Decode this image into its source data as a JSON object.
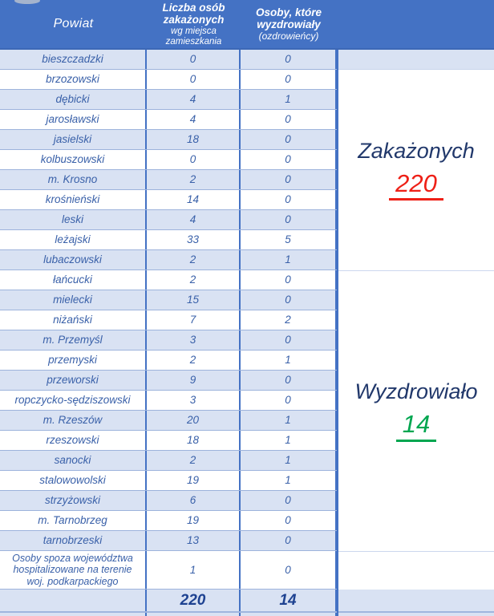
{
  "header": {
    "col_powiat": "Powiat",
    "col_infected_main": "Liczba osób zakażonych",
    "col_infected_sub": "wg miejsca zamieszkania",
    "col_recovered_main": "Osoby, które wyzdrowiały",
    "col_recovered_sub": "(ozdrowieńcy)"
  },
  "table": {
    "rows": [
      {
        "name": "bieszczadzki",
        "infected": "0",
        "recovered": "0"
      },
      {
        "name": "brzozowski",
        "infected": "0",
        "recovered": "0"
      },
      {
        "name": "dębicki",
        "infected": "4",
        "recovered": "1"
      },
      {
        "name": "jarosławski",
        "infected": "4",
        "recovered": "0"
      },
      {
        "name": "jasielski",
        "infected": "18",
        "recovered": "0"
      },
      {
        "name": "kolbuszowski",
        "infected": "0",
        "recovered": "0"
      },
      {
        "name": "m. Krosno",
        "infected": "2",
        "recovered": "0"
      },
      {
        "name": "krośnieński",
        "infected": "14",
        "recovered": "0"
      },
      {
        "name": "leski",
        "infected": "4",
        "recovered": "0"
      },
      {
        "name": "leżajski",
        "infected": "33",
        "recovered": "5"
      },
      {
        "name": "lubaczowski",
        "infected": "2",
        "recovered": "1"
      },
      {
        "name": "łańcucki",
        "infected": "2",
        "recovered": "0"
      },
      {
        "name": "mielecki",
        "infected": "15",
        "recovered": "0"
      },
      {
        "name": "niżański",
        "infected": "7",
        "recovered": "2"
      },
      {
        "name": "m. Przemyśl",
        "infected": "3",
        "recovered": "0"
      },
      {
        "name": "przemyski",
        "infected": "2",
        "recovered": "1"
      },
      {
        "name": "przeworski",
        "infected": "9",
        "recovered": "0"
      },
      {
        "name": "ropczycko-sędziszowski",
        "infected": "3",
        "recovered": "0"
      },
      {
        "name": "m. Rzeszów",
        "infected": "20",
        "recovered": "1"
      },
      {
        "name": "rzeszowski",
        "infected": "18",
        "recovered": "1"
      },
      {
        "name": "sanocki",
        "infected": "2",
        "recovered": "1"
      },
      {
        "name": "stalowowolski",
        "infected": "19",
        "recovered": "1"
      },
      {
        "name": "strzyżowski",
        "infected": "6",
        "recovered": "0"
      },
      {
        "name": "m. Tarnobrzeg",
        "infected": "19",
        "recovered": "0"
      },
      {
        "name": "tarnobrzeski",
        "infected": "13",
        "recovered": "0"
      }
    ],
    "special_row": {
      "name": "Osoby spoza województwa hospitalizowane na terenie woj. podkarpackiego",
      "infected": "1",
      "recovered": "0"
    },
    "totals": {
      "infected": "220",
      "recovered": "14"
    }
  },
  "summary": {
    "infected_label": "Zakażonych",
    "infected_value": "220",
    "recovered_label": "Wyzdrowiało",
    "recovered_value": "14"
  },
  "colors": {
    "header_blue": "#4472c4",
    "row_alt_blue": "#d9e2f3",
    "row_border": "#9db3dc",
    "cell_text_blue": "#3a61a9",
    "total_text_blue": "#1e4291",
    "summary_navy": "#21386b",
    "infected_red": "#ee2017",
    "recovered_green": "#00a650"
  }
}
